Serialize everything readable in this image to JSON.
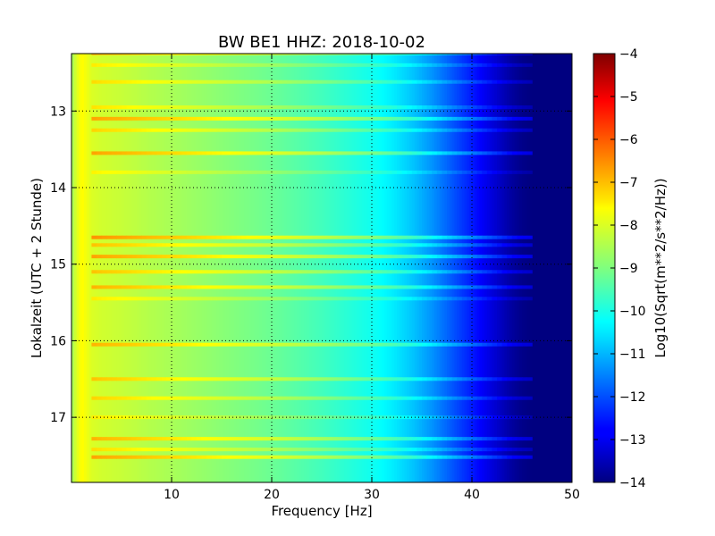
{
  "chart_data": {
    "type": "heatmap",
    "title": "BW BE1 HHZ: 2018-10-02",
    "xlabel": "Frequency [Hz]",
    "ylabel": "Lokalzeit (UTC + 2 Stunde)",
    "colorbar_label": "Log10(Sqrt(m**2/s**2/Hz))",
    "xlim": [
      0,
      50
    ],
    "ylim": [
      12.25,
      17.85
    ],
    "y_axis_inverted": true,
    "x_ticks": [
      10,
      20,
      30,
      40,
      50
    ],
    "x_tick_labels": [
      "10",
      "20",
      "30",
      "40",
      "50"
    ],
    "y_ticks": [
      13,
      14,
      15,
      16,
      17
    ],
    "y_tick_labels": [
      "13",
      "14",
      "15",
      "16",
      "17"
    ],
    "grid": true,
    "colormap": "jet",
    "color_range": [
      -14,
      -4
    ],
    "colorbar_ticks": [
      -4,
      -5,
      -6,
      -7,
      -8,
      -9,
      -10,
      -11,
      -12,
      -13,
      -14
    ],
    "colorbar_tick_labels": [
      "−4",
      "−5",
      "−6",
      "−7",
      "−8",
      "−9",
      "−10",
      "−11",
      "−12",
      "−13",
      "−14"
    ],
    "spectral_profile": {
      "frequency_hz": [
        0,
        0.5,
        1,
        1.5,
        2,
        3,
        5,
        8,
        10,
        15,
        20,
        25,
        30,
        32,
        34,
        36,
        38,
        40,
        42,
        43,
        44,
        45,
        46,
        50
      ],
      "log10_amplitude": [
        -8.7,
        -8.1,
        -7.7,
        -7.9,
        -8.1,
        -8.2,
        -8.3,
        -8.5,
        -8.6,
        -8.9,
        -9.2,
        -9.6,
        -10.1,
        -10.4,
        -10.8,
        -11.3,
        -11.9,
        -12.5,
        -13.1,
        -13.4,
        -13.7,
        -13.9,
        -14.0,
        -14.0
      ]
    },
    "bright_bands": [
      {
        "time": 12.25,
        "strength": 0.6
      },
      {
        "time": 12.4,
        "strength": 0.35
      },
      {
        "time": 12.62,
        "strength": 0.45
      },
      {
        "time": 12.95,
        "strength": 0.4
      },
      {
        "time": 13.1,
        "strength": 0.8
      },
      {
        "time": 13.25,
        "strength": 0.5
      },
      {
        "time": 13.55,
        "strength": 0.8
      },
      {
        "time": 13.8,
        "strength": 0.3
      },
      {
        "time": 14.65,
        "strength": 0.9
      },
      {
        "time": 14.75,
        "strength": 0.6
      },
      {
        "time": 14.9,
        "strength": 0.8
      },
      {
        "time": 15.1,
        "strength": 0.6
      },
      {
        "time": 15.3,
        "strength": 0.7
      },
      {
        "time": 15.45,
        "strength": 0.35
      },
      {
        "time": 16.05,
        "strength": 0.7
      },
      {
        "time": 16.5,
        "strength": 0.6
      },
      {
        "time": 16.75,
        "strength": 0.5
      },
      {
        "time": 17.0,
        "strength": 0.35
      },
      {
        "time": 17.28,
        "strength": 0.7
      },
      {
        "time": 17.42,
        "strength": 0.45
      },
      {
        "time": 17.52,
        "strength": 0.8
      }
    ]
  }
}
